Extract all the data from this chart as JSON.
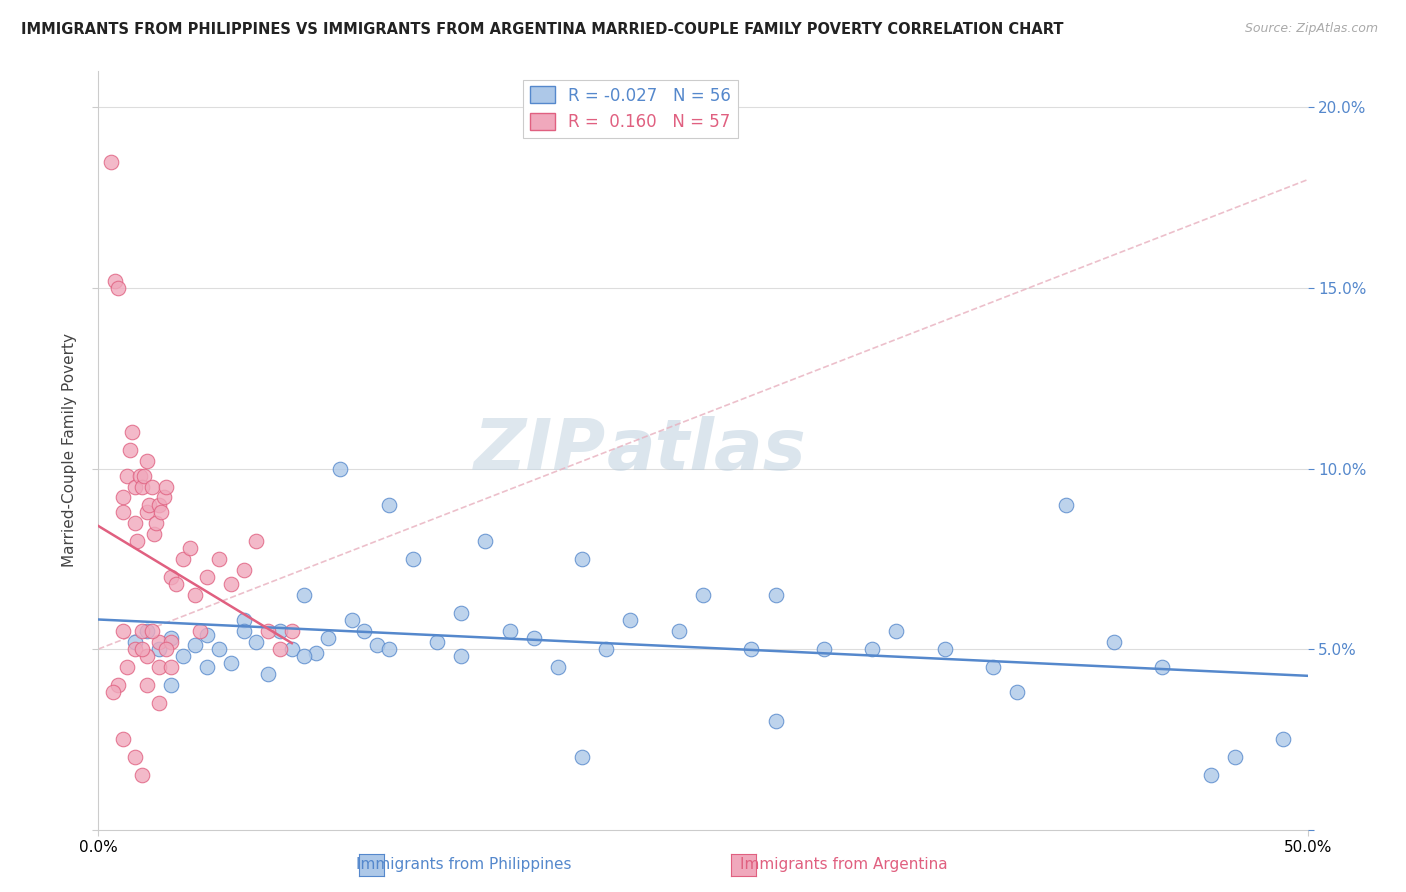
{
  "title": "IMMIGRANTS FROM PHILIPPINES VS IMMIGRANTS FROM ARGENTINA MARRIED-COUPLE FAMILY POVERTY CORRELATION CHART",
  "source": "Source: ZipAtlas.com",
  "ylabel": "Married-Couple Family Poverty",
  "xlim": [
    0,
    50
  ],
  "ylim": [
    0,
    21
  ],
  "yticks": [
    0,
    5,
    10,
    15,
    20
  ],
  "ytick_labels_right": [
    "",
    "5.0%",
    "10.0%",
    "15.0%",
    "20.0%"
  ],
  "legend_R1": "-0.027",
  "legend_N1": "56",
  "legend_R2": "0.160",
  "legend_N2": "57",
  "color_blue": "#adc8e8",
  "color_pink": "#f0a8bc",
  "color_blue_line": "#5588cc",
  "color_pink_line": "#e06080",
  "color_dashed": "#e8a0b0",
  "philippines_x": [
    1.5,
    2.0,
    2.5,
    3.0,
    3.5,
    4.0,
    4.5,
    5.0,
    5.5,
    6.0,
    6.5,
    7.0,
    7.5,
    8.0,
    8.5,
    9.0,
    9.5,
    10.0,
    10.5,
    11.0,
    11.5,
    12.0,
    13.0,
    14.0,
    15.0,
    16.0,
    17.0,
    18.0,
    19.0,
    20.0,
    21.0,
    22.0,
    24.0,
    25.0,
    27.0,
    28.0,
    30.0,
    32.0,
    33.0,
    35.0,
    37.0,
    38.0,
    40.0,
    42.0,
    44.0,
    46.0,
    47.0,
    49.0,
    3.0,
    4.5,
    6.0,
    8.5,
    12.0,
    15.0,
    20.0,
    28.0
  ],
  "philippines_y": [
    5.2,
    5.5,
    5.0,
    5.3,
    4.8,
    5.1,
    5.4,
    5.0,
    4.6,
    5.8,
    5.2,
    4.3,
    5.5,
    5.0,
    6.5,
    4.9,
    5.3,
    10.0,
    5.8,
    5.5,
    5.1,
    9.0,
    7.5,
    5.2,
    6.0,
    8.0,
    5.5,
    5.3,
    4.5,
    7.5,
    5.0,
    5.8,
    5.5,
    6.5,
    5.0,
    6.5,
    5.0,
    5.0,
    5.5,
    5.0,
    4.5,
    3.8,
    9.0,
    5.2,
    4.5,
    1.5,
    2.0,
    2.5,
    4.0,
    4.5,
    5.5,
    4.8,
    5.0,
    4.8,
    2.0,
    3.0
  ],
  "argentina_x": [
    0.5,
    0.7,
    0.8,
    1.0,
    1.0,
    1.2,
    1.3,
    1.4,
    1.5,
    1.5,
    1.6,
    1.7,
    1.8,
    1.8,
    1.9,
    2.0,
    2.0,
    2.1,
    2.2,
    2.3,
    2.4,
    2.5,
    2.5,
    2.6,
    2.7,
    2.8,
    3.0,
    3.2,
    3.5,
    3.8,
    4.0,
    4.2,
    4.5,
    5.0,
    5.5,
    6.0,
    6.5,
    7.0,
    7.5,
    8.0,
    1.0,
    1.5,
    2.0,
    2.5,
    3.0,
    0.8,
    1.2,
    1.8,
    2.2,
    2.8,
    0.6,
    1.0,
    1.5,
    1.8,
    2.0,
    2.5,
    3.0
  ],
  "argentina_y": [
    18.5,
    15.2,
    15.0,
    9.2,
    8.8,
    9.8,
    10.5,
    11.0,
    9.5,
    8.5,
    8.0,
    9.8,
    9.5,
    5.5,
    9.8,
    10.2,
    8.8,
    9.0,
    9.5,
    8.2,
    8.5,
    9.0,
    5.2,
    8.8,
    9.2,
    9.5,
    7.0,
    6.8,
    7.5,
    7.8,
    6.5,
    5.5,
    7.0,
    7.5,
    6.8,
    7.2,
    8.0,
    5.5,
    5.0,
    5.5,
    5.5,
    5.0,
    4.8,
    4.5,
    5.2,
    4.0,
    4.5,
    5.0,
    5.5,
    5.0,
    3.8,
    2.5,
    2.0,
    1.5,
    4.0,
    3.5,
    4.5
  ],
  "watermark_zip": "ZIP",
  "watermark_atlas": "atlas",
  "watermark_color": "#d8e8f0"
}
